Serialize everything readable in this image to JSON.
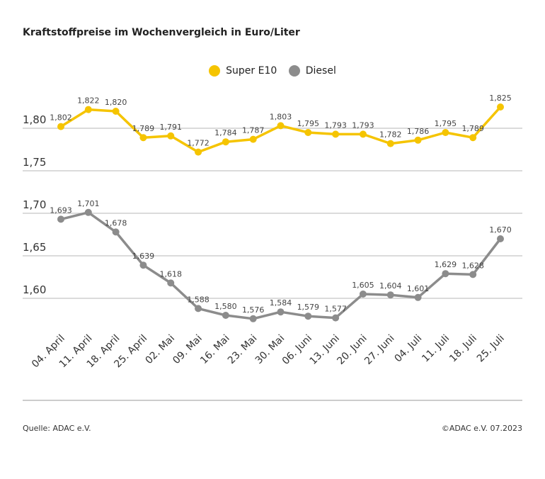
{
  "chart_data": {
    "type": "line",
    "title": "Kraftstoffpreise im Wochenvergleich in Euro/Liter",
    "categories": [
      "04. April",
      "11. April",
      "18. April",
      "25. April",
      "02. Mai",
      "09. Mai",
      "16. Mai",
      "23. Mai",
      "30. Mai",
      "06. Juni",
      "13. Juni",
      "20. Juni",
      "27. Juni",
      "04. Juli",
      "11. Juli",
      "18. Juli",
      "25. Juli"
    ],
    "series": [
      {
        "name": "Super E10",
        "color": "#f5c400",
        "values": [
          1.802,
          1.822,
          1.82,
          1.789,
          1.791,
          1.772,
          1.784,
          1.787,
          1.803,
          1.795,
          1.793,
          1.793,
          1.782,
          1.786,
          1.795,
          1.789,
          1.825
        ]
      },
      {
        "name": "Diesel",
        "color": "#8c8c8c",
        "values": [
          1.693,
          1.701,
          1.678,
          1.639,
          1.618,
          1.588,
          1.58,
          1.576,
          1.584,
          1.579,
          1.577,
          1.605,
          1.604,
          1.601,
          1.629,
          1.628,
          1.67
        ]
      }
    ],
    "yticks": [
      "1,60",
      "1,65",
      "1,70",
      "1,75",
      "1,80"
    ],
    "ytick_values": [
      1.6,
      1.65,
      1.7,
      1.75,
      1.8
    ],
    "grid": true,
    "legend": "top-center"
  },
  "footer": {
    "source": "Quelle: ADAC e.V.",
    "copyright": "©ADAC e.V. 07.2023"
  }
}
